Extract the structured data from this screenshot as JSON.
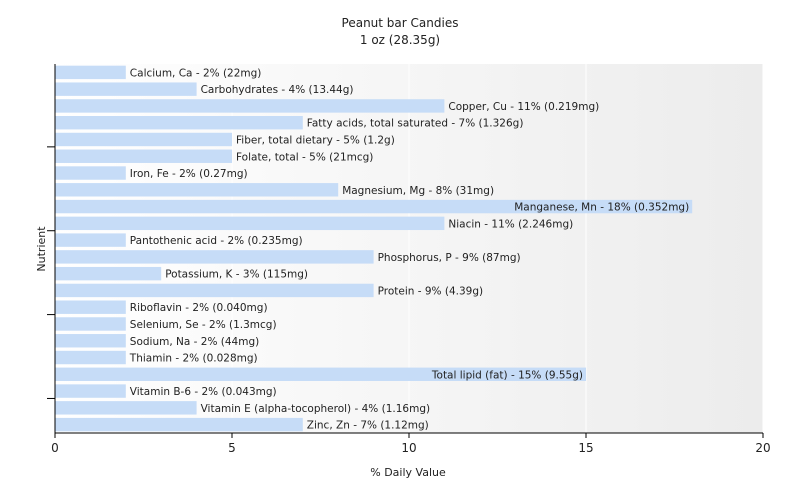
{
  "chart_data": {
    "type": "bar",
    "orientation": "horizontal",
    "title": "Peanut bar Candies",
    "subtitle": "1 oz (28.35g)",
    "xlabel": "% Daily Value",
    "ylabel": "Nutrient",
    "xlim": [
      0,
      20
    ],
    "xticks": [
      0,
      5,
      10,
      15,
      20
    ],
    "grid": true,
    "bar_color": "#c6dcf7",
    "categories": [
      "Calcium, Ca",
      "Carbohydrates",
      "Copper, Cu",
      "Fatty acids, total saturated",
      "Fiber, total dietary",
      "Folate, total",
      "Iron, Fe",
      "Magnesium, Mg",
      "Manganese, Mn",
      "Niacin",
      "Pantothenic acid",
      "Phosphorus, P",
      "Potassium, K",
      "Protein",
      "Riboflavin",
      "Selenium, Se",
      "Sodium, Na",
      "Thiamin",
      "Total lipid (fat)",
      "Vitamin B-6",
      "Vitamin E (alpha-tocopherol)",
      "Zinc, Zn"
    ],
    "values": [
      2,
      4,
      11,
      7,
      5,
      5,
      2,
      8,
      18,
      11,
      2,
      9,
      3,
      9,
      2,
      2,
      2,
      2,
      15,
      2,
      4,
      7
    ],
    "labels": [
      "Calcium, Ca - 2% (22mg)",
      "Carbohydrates - 4% (13.44g)",
      "Copper, Cu - 11% (0.219mg)",
      "Fatty acids, total saturated - 7% (1.326g)",
      "Fiber, total dietary - 5% (1.2g)",
      "Folate, total - 5% (21mcg)",
      "Iron, Fe - 2% (0.27mg)",
      "Magnesium, Mg - 8% (31mg)",
      "Manganese, Mn - 18% (0.352mg)",
      "Niacin - 11% (2.246mg)",
      "Pantothenic acid - 2% (0.235mg)",
      "Phosphorus, P - 9% (87mg)",
      "Potassium, K - 3% (115mg)",
      "Protein - 9% (4.39g)",
      "Riboflavin - 2% (0.040mg)",
      "Selenium, Se - 2% (1.3mcg)",
      "Sodium, Na - 2% (44mg)",
      "Thiamin - 2% (0.028mg)",
      "Total lipid (fat) - 15% (9.55g)",
      "Vitamin B-6 - 2% (0.043mg)",
      "Vitamin E (alpha-tocopherol) - 4% (1.16mg)",
      "Zinc, Zn - 7% (1.12mg)"
    ]
  }
}
